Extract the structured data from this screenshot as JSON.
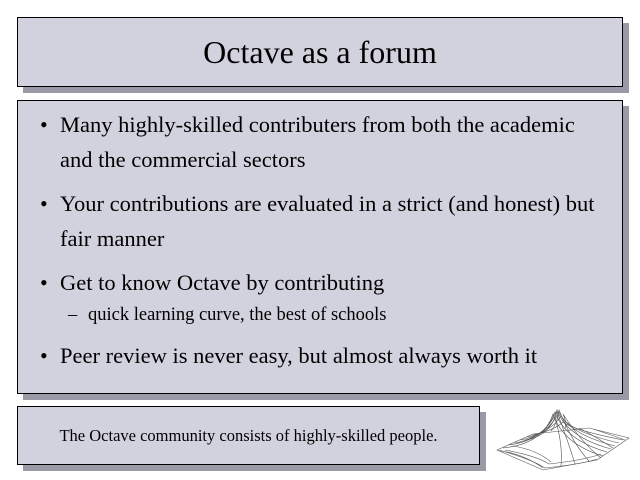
{
  "slide": {
    "title": "Octave as a forum",
    "bullets": [
      {
        "text": "Many highly-skilled contributers from both the academic and the commercial sectors"
      },
      {
        "text": "Your contributions are evaluated in a strict (and honest) but fair manner"
      },
      {
        "text": "Get to know Octave by contributing"
      },
      {
        "text": "Peer review is never easy, but almost always worth it"
      }
    ],
    "sub_bullet": "quick learning curve, the best of schools",
    "note": "The Octave community consists of highly-skilled people.",
    "colors": {
      "box_fill": "#d2d2de",
      "box_shadow": "#9a9aa6",
      "border": "#000000"
    },
    "logo_icon": "sombrero-surface-plot-icon"
  }
}
